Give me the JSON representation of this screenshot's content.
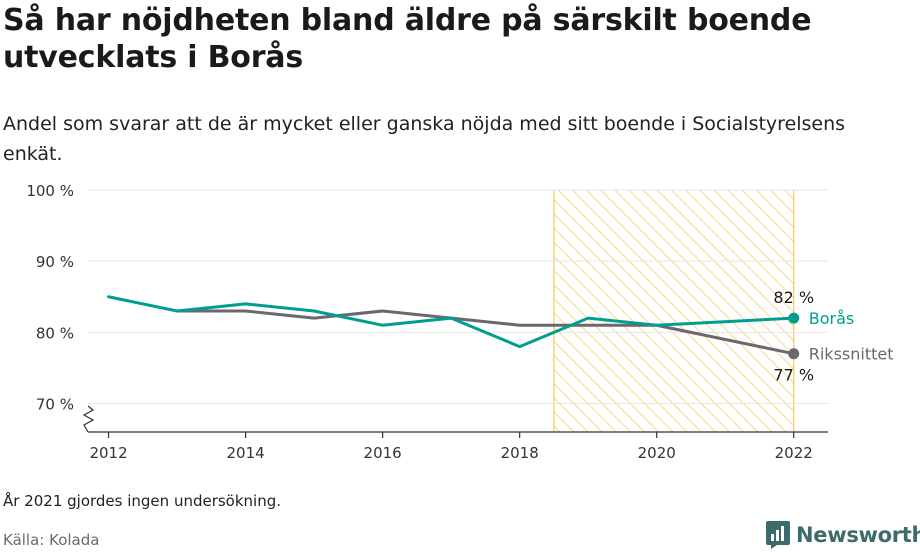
{
  "title": "Så har nöjdheten bland äldre på särskilt boende utvecklats i Borås",
  "subtitle": "Andel som svarar att de är mycket eller ganska nöjda med sitt boende i Socialstyrelsens enkät.",
  "note": "År 2021 gjordes ingen undersökning.",
  "source": "Källa: Kolada",
  "brand": "Newsworthy",
  "colors": {
    "boras": "#009e8e",
    "riksnitt": "#6b676d",
    "highlight": "#f5c75a",
    "grid": "#e6e6e6"
  },
  "chart_data": {
    "type": "line",
    "x": [
      2012,
      2013,
      2014,
      2015,
      2016,
      2017,
      2018,
      2019,
      2020,
      2022
    ],
    "ylim": [
      66,
      100
    ],
    "yticks": [
      70,
      80,
      90,
      100
    ],
    "ytick_labels": [
      "70 %",
      "80 %",
      "90 %",
      "100 %"
    ],
    "xlim": [
      2011.7,
      2022.5
    ],
    "xticks": [
      2012,
      2014,
      2016,
      2018,
      2020,
      2022
    ],
    "xtick_labels": [
      "2012",
      "2014",
      "2016",
      "2018",
      "2020",
      "2022"
    ],
    "highlight_range": [
      2018.5,
      2022
    ],
    "series": [
      {
        "name": "Rikssnittet",
        "color": "#6b676d",
        "x": [
          2013,
          2014,
          2015,
          2016,
          2017,
          2018,
          2019,
          2020,
          2022
        ],
        "values": [
          83,
          83,
          82,
          83,
          82,
          81,
          81,
          81,
          77
        ],
        "end_label": "77 %"
      },
      {
        "name": "Borås",
        "color": "#009e8e",
        "x": [
          2012,
          2013,
          2014,
          2015,
          2016,
          2017,
          2018,
          2019,
          2020,
          2022
        ],
        "values": [
          85,
          83,
          84,
          83,
          81,
          82,
          78,
          82,
          81,
          82
        ],
        "end_label": "82 %"
      }
    ]
  }
}
